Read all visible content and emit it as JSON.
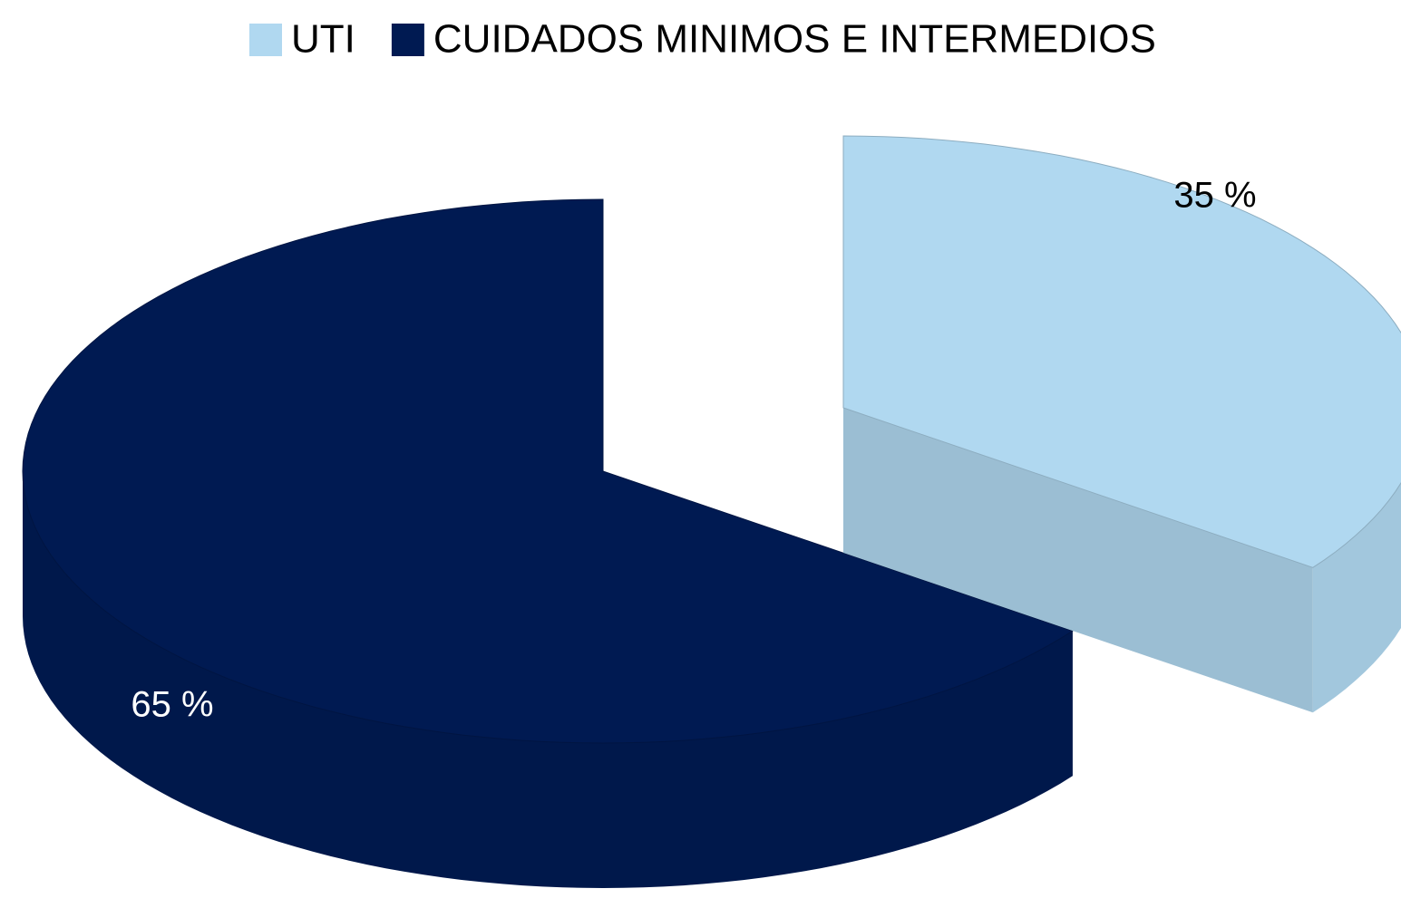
{
  "chart_data": {
    "type": "pie",
    "categories": [
      "UTI",
      "CUIDADOS MINIMOS E INTERMEDIOS"
    ],
    "values": [
      35,
      65
    ],
    "value_labels": [
      "35 %",
      "65 %"
    ],
    "colors": [
      "#b0d8f0",
      "#001a52"
    ],
    "legend": "top"
  }
}
